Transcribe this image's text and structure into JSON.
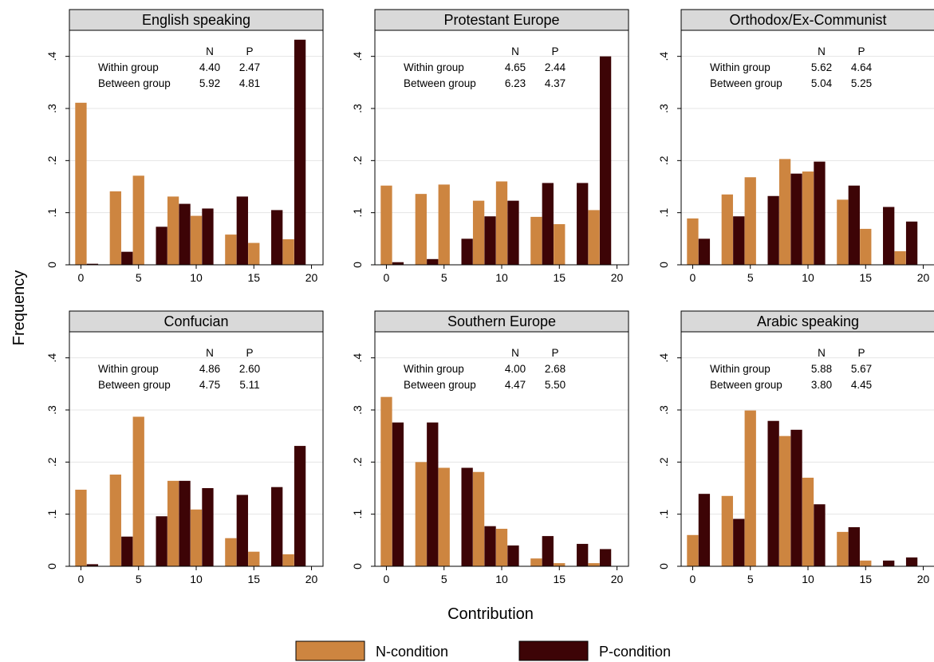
{
  "chart_data": {
    "type": "bar",
    "layout": "facet-grid-2x3",
    "ylabel": "Frequency",
    "xlabel": "Contribution",
    "y_range": [
      0,
      0.45
    ],
    "y_ticks": [
      0,
      0.1,
      0.2,
      0.3,
      0.4
    ],
    "y_tick_labels": [
      "0",
      ".1",
      ".2",
      ".3",
      ".4"
    ],
    "x_range": [
      -1,
      21
    ],
    "x_ticks": [
      0,
      5,
      10,
      15,
      20
    ],
    "x_tick_labels": [
      "0",
      "5",
      "10",
      "15",
      "20"
    ],
    "grid": true,
    "legend_position": "bottom",
    "series": [
      {
        "name": "N-condition",
        "color": "#CD8540"
      },
      {
        "name": "P-condition",
        "color": "#3D0406"
      }
    ],
    "stats_header": [
      "N",
      "P"
    ],
    "stats_rows": [
      "Within group",
      "Between group"
    ],
    "panels": [
      {
        "title": "English speaking",
        "stats": [
          [
            "4.40",
            "2.47"
          ],
          [
            "5.92",
            "4.81"
          ]
        ],
        "bars": [
          {
            "series": 0,
            "x": 0,
            "y": 0.311
          },
          {
            "series": 1,
            "x": 1,
            "y": 0.002
          },
          {
            "series": 0,
            "x": 3,
            "y": 0.141
          },
          {
            "series": 1,
            "x": 4,
            "y": 0.025
          },
          {
            "series": 0,
            "x": 5,
            "y": 0.171
          },
          {
            "series": 1,
            "x": 7,
            "y": 0.073
          },
          {
            "series": 0,
            "x": 8,
            "y": 0.131
          },
          {
            "series": 1,
            "x": 9,
            "y": 0.117
          },
          {
            "series": 0,
            "x": 10,
            "y": 0.094
          },
          {
            "series": 1,
            "x": 11,
            "y": 0.108
          },
          {
            "series": 0,
            "x": 13,
            "y": 0.058
          },
          {
            "series": 1,
            "x": 14,
            "y": 0.131
          },
          {
            "series": 0,
            "x": 15,
            "y": 0.042
          },
          {
            "series": 1,
            "x": 17,
            "y": 0.105
          },
          {
            "series": 0,
            "x": 18,
            "y": 0.049
          },
          {
            "series": 1,
            "x": 19,
            "y": 0.432
          }
        ]
      },
      {
        "title": "Protestant Europe",
        "stats": [
          [
            "4.65",
            "2.44"
          ],
          [
            "6.23",
            "4.37"
          ]
        ],
        "bars": [
          {
            "series": 0,
            "x": 0,
            "y": 0.152
          },
          {
            "series": 1,
            "x": 1,
            "y": 0.005
          },
          {
            "series": 0,
            "x": 3,
            "y": 0.136
          },
          {
            "series": 1,
            "x": 4,
            "y": 0.011
          },
          {
            "series": 0,
            "x": 5,
            "y": 0.154
          },
          {
            "series": 1,
            "x": 7,
            "y": 0.05
          },
          {
            "series": 0,
            "x": 8,
            "y": 0.123
          },
          {
            "series": 1,
            "x": 9,
            "y": 0.093
          },
          {
            "series": 0,
            "x": 10,
            "y": 0.16
          },
          {
            "series": 1,
            "x": 11,
            "y": 0.123
          },
          {
            "series": 0,
            "x": 13,
            "y": 0.092
          },
          {
            "series": 1,
            "x": 14,
            "y": 0.157
          },
          {
            "series": 0,
            "x": 15,
            "y": 0.078
          },
          {
            "series": 1,
            "x": 17,
            "y": 0.157
          },
          {
            "series": 0,
            "x": 18,
            "y": 0.105
          },
          {
            "series": 1,
            "x": 19,
            "y": 0.4
          }
        ]
      },
      {
        "title": "Orthodox/Ex-Communist",
        "stats": [
          [
            "5.62",
            "4.64"
          ],
          [
            "5.04",
            "5.25"
          ]
        ],
        "bars": [
          {
            "series": 0,
            "x": 0,
            "y": 0.089
          },
          {
            "series": 1,
            "x": 1,
            "y": 0.05
          },
          {
            "series": 0,
            "x": 3,
            "y": 0.135
          },
          {
            "series": 1,
            "x": 4,
            "y": 0.093
          },
          {
            "series": 0,
            "x": 5,
            "y": 0.168
          },
          {
            "series": 1,
            "x": 7,
            "y": 0.132
          },
          {
            "series": 0,
            "x": 8,
            "y": 0.203
          },
          {
            "series": 1,
            "x": 9,
            "y": 0.175
          },
          {
            "series": 0,
            "x": 10,
            "y": 0.179
          },
          {
            "series": 1,
            "x": 11,
            "y": 0.198
          },
          {
            "series": 0,
            "x": 13,
            "y": 0.125
          },
          {
            "series": 1,
            "x": 14,
            "y": 0.152
          },
          {
            "series": 0,
            "x": 15,
            "y": 0.069
          },
          {
            "series": 1,
            "x": 17,
            "y": 0.111
          },
          {
            "series": 0,
            "x": 18,
            "y": 0.026
          },
          {
            "series": 1,
            "x": 19,
            "y": 0.083
          }
        ]
      },
      {
        "title": "Confucian",
        "stats": [
          [
            "4.86",
            "2.60"
          ],
          [
            "4.75",
            "5.11"
          ]
        ],
        "bars": [
          {
            "series": 0,
            "x": 0,
            "y": 0.147
          },
          {
            "series": 1,
            "x": 1,
            "y": 0.004
          },
          {
            "series": 0,
            "x": 3,
            "y": 0.176
          },
          {
            "series": 1,
            "x": 4,
            "y": 0.057
          },
          {
            "series": 0,
            "x": 5,
            "y": 0.287
          },
          {
            "series": 1,
            "x": 7,
            "y": 0.096
          },
          {
            "series": 0,
            "x": 8,
            "y": 0.164
          },
          {
            "series": 1,
            "x": 9,
            "y": 0.164
          },
          {
            "series": 0,
            "x": 10,
            "y": 0.109
          },
          {
            "series": 1,
            "x": 11,
            "y": 0.15
          },
          {
            "series": 0,
            "x": 13,
            "y": 0.054
          },
          {
            "series": 1,
            "x": 14,
            "y": 0.137
          },
          {
            "series": 0,
            "x": 15,
            "y": 0.028
          },
          {
            "series": 1,
            "x": 17,
            "y": 0.152
          },
          {
            "series": 0,
            "x": 18,
            "y": 0.023
          },
          {
            "series": 1,
            "x": 19,
            "y": 0.231
          }
        ]
      },
      {
        "title": "Southern Europe",
        "stats": [
          [
            "4.00",
            "2.68"
          ],
          [
            "4.47",
            "5.50"
          ]
        ],
        "bars": [
          {
            "series": 0,
            "x": 0,
            "y": 0.325
          },
          {
            "series": 1,
            "x": 1,
            "y": 0.276
          },
          {
            "series": 0,
            "x": 3,
            "y": 0.2
          },
          {
            "series": 1,
            "x": 4,
            "y": 0.276
          },
          {
            "series": 0,
            "x": 5,
            "y": 0.189
          },
          {
            "series": 1,
            "x": 7,
            "y": 0.189
          },
          {
            "series": 0,
            "x": 8,
            "y": 0.181
          },
          {
            "series": 1,
            "x": 9,
            "y": 0.077
          },
          {
            "series": 0,
            "x": 10,
            "y": 0.072
          },
          {
            "series": 1,
            "x": 11,
            "y": 0.04
          },
          {
            "series": 0,
            "x": 13,
            "y": 0.015
          },
          {
            "series": 1,
            "x": 14,
            "y": 0.058
          },
          {
            "series": 0,
            "x": 15,
            "y": 0.006
          },
          {
            "series": 1,
            "x": 17,
            "y": 0.043
          },
          {
            "series": 0,
            "x": 18,
            "y": 0.006
          },
          {
            "series": 1,
            "x": 19,
            "y": 0.033
          }
        ]
      },
      {
        "title": "Arabic speaking",
        "stats": [
          [
            "5.88",
            "5.67"
          ],
          [
            "3.80",
            "4.45"
          ]
        ],
        "bars": [
          {
            "series": 0,
            "x": 0,
            "y": 0.06
          },
          {
            "series": 1,
            "x": 1,
            "y": 0.139
          },
          {
            "series": 0,
            "x": 3,
            "y": 0.135
          },
          {
            "series": 1,
            "x": 4,
            "y": 0.091
          },
          {
            "series": 0,
            "x": 5,
            "y": 0.299
          },
          {
            "series": 1,
            "x": 7,
            "y": 0.279
          },
          {
            "series": 0,
            "x": 8,
            "y": 0.25
          },
          {
            "series": 1,
            "x": 9,
            "y": 0.262
          },
          {
            "series": 0,
            "x": 10,
            "y": 0.17
          },
          {
            "series": 1,
            "x": 11,
            "y": 0.119
          },
          {
            "series": 0,
            "x": 13,
            "y": 0.066
          },
          {
            "series": 1,
            "x": 14,
            "y": 0.075
          },
          {
            "series": 0,
            "x": 15,
            "y": 0.011
          },
          {
            "series": 1,
            "x": 17,
            "y": 0.011
          },
          {
            "series": 0,
            "x": 18,
            "y": 0
          },
          {
            "series": 1,
            "x": 19,
            "y": 0.017
          }
        ]
      }
    ]
  }
}
